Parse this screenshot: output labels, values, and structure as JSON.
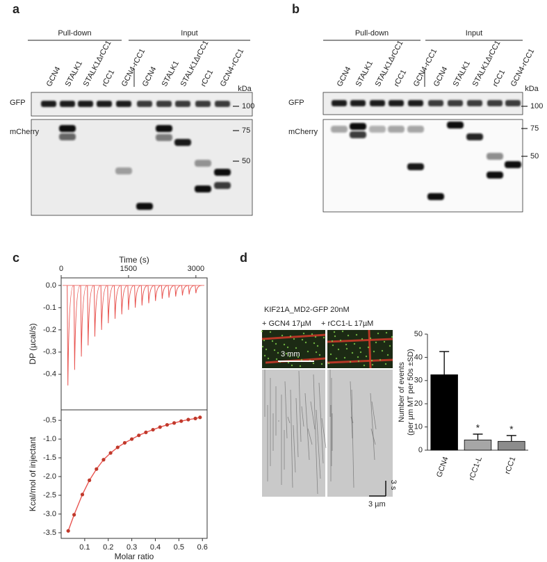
{
  "blots": [
    {
      "letter": "a",
      "groups": [
        "Pull-down",
        "Input"
      ],
      "lanes": [
        "GCN4",
        "STALK1",
        "STALK1ΔrCC1",
        "rCC1",
        "GCN4-rCC1",
        "GCN4",
        "STALK1",
        "STALK1ΔrCC1",
        "rCC1",
        "GCN4-rCC1"
      ],
      "rows": [
        "GFP",
        "mCherry"
      ],
      "unit": "kDa",
      "markers": [
        100,
        75,
        50
      ]
    },
    {
      "letter": "b",
      "groups": [
        "Pull-down",
        "Input"
      ],
      "lanes": [
        "GCN4",
        "STALK1",
        "STALK1ΔrCC1",
        "rCC1",
        "GCN4-rCC1",
        "GCN4",
        "STALK1",
        "STALK1ΔrCC1",
        "rCC1",
        "GCN4-rCC1"
      ],
      "rows": [
        "GFP",
        "mCherry"
      ],
      "unit": "kDa",
      "markers": [
        100,
        75,
        50
      ]
    }
  ],
  "micrographs": {
    "letter": "d",
    "title": "KIF21A_MD2-GFP 20nM",
    "conditions": [
      "+ GCN4 17µM",
      "+ rCC1-L 17µM"
    ],
    "scale_bars": [
      "3 mm",
      "3 µm",
      "3 s"
    ]
  },
  "chart_data": [
    {
      "type": "line",
      "letter": "c",
      "xlabel": "Time (s)",
      "ylabel": "DP (µcal/s)",
      "x": [
        150,
        300,
        450,
        600,
        750,
        900,
        1050,
        1200,
        1350,
        1500,
        1650,
        1800,
        1950,
        2100,
        2250,
        2400,
        2550,
        2700,
        2850,
        3000
      ],
      "series": [
        {
          "color": "#e8534f",
          "values": [
            -0.45,
            -0.38,
            -0.32,
            -0.27,
            -0.23,
            -0.2,
            -0.17,
            -0.15,
            -0.13,
            -0.11,
            -0.1,
            -0.09,
            -0.08,
            -0.07,
            -0.06,
            -0.055,
            -0.05,
            -0.045,
            -0.04,
            -0.035
          ]
        }
      ],
      "xlim": [
        0,
        3250
      ],
      "xticks": [
        0,
        1500,
        3000
      ],
      "ylim": [
        -0.56,
        0.034
      ],
      "yticks": [
        {
          "value": 0,
          "label": "0.0"
        },
        -0.1,
        -0.2,
        -0.3,
        -0.4
      ]
    },
    {
      "type": "scatter",
      "xlabel": "Molar ratio",
      "ylabel": "Kcal/mol of injectant",
      "x": [
        0.03,
        0.055,
        0.09,
        0.12,
        0.15,
        0.18,
        0.21,
        0.24,
        0.27,
        0.3,
        0.33,
        0.36,
        0.39,
        0.42,
        0.45,
        0.48,
        0.51,
        0.54,
        0.57,
        0.59
      ],
      "series": [
        {
          "color": "#c0392b",
          "values": [
            -3.45,
            -3.02,
            -2.48,
            -2.1,
            -1.8,
            -1.55,
            -1.37,
            -1.22,
            -1.1,
            -1.0,
            -0.9,
            -0.82,
            -0.75,
            -0.68,
            -0.62,
            -0.57,
            -0.52,
            -0.48,
            -0.45,
            -0.42
          ]
        }
      ],
      "xlim": [
        0,
        0.62
      ],
      "xticks": [
        0.1,
        0.2,
        0.3,
        0.4,
        0.5,
        0.6
      ],
      "ylim": [
        -3.65,
        -0.22
      ],
      "yticks": [
        -0.5,
        {
          "value": -1,
          "label": "-1.0"
        },
        -1.5,
        {
          "value": -2,
          "label": "-2.0"
        },
        -2.5,
        {
          "value": -3,
          "label": "-3.0"
        },
        -3.5
      ]
    },
    {
      "type": "bar",
      "ylabel": [
        "Number of events",
        "(per µm MT per 50s ±SD)"
      ],
      "categories": [
        "GCN4",
        "rCC1-L",
        "rCC1"
      ],
      "values": [
        32.5,
        4.4,
        3.8
      ],
      "errors": [
        10,
        2.5,
        2.5
      ],
      "colors": [
        "#000000",
        "#a6a6a6",
        "#8c8c8c"
      ],
      "annotations": [
        null,
        "*",
        "*"
      ],
      "ylim": [
        0,
        50
      ],
      "yticks": [
        0,
        10,
        20,
        30,
        40,
        50
      ]
    }
  ]
}
